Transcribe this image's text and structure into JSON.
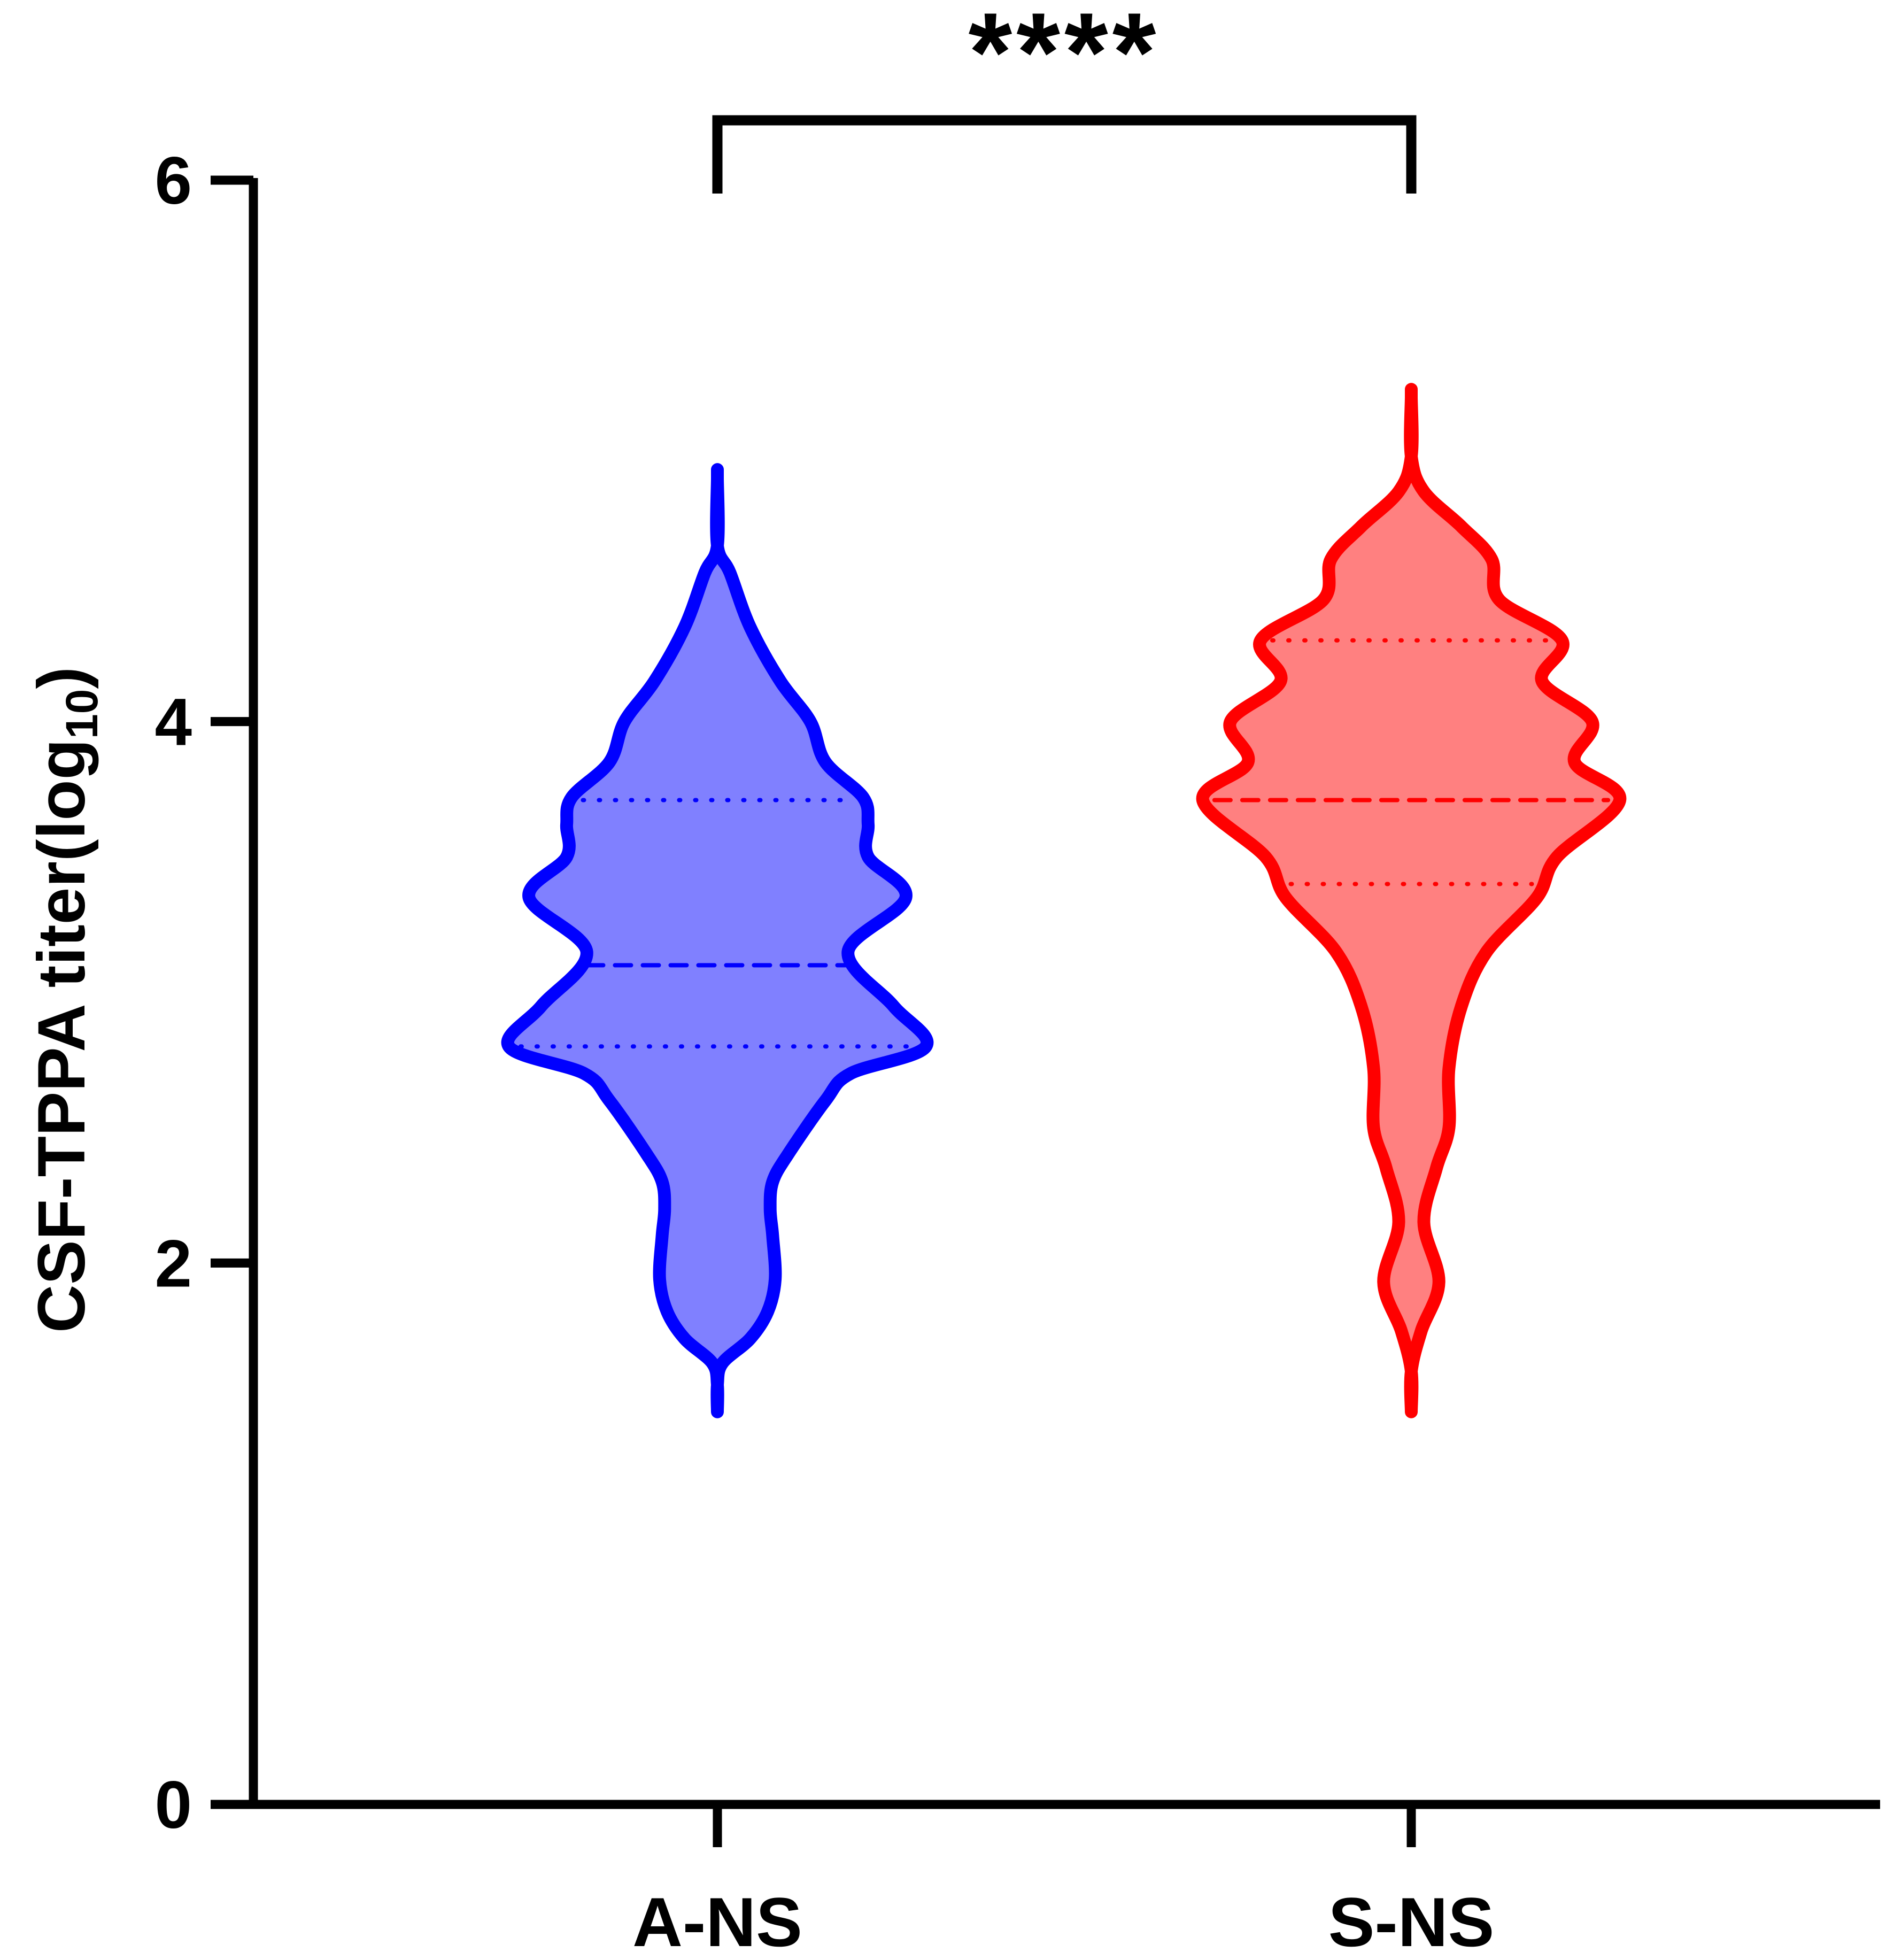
{
  "chart_data": {
    "type": "violin",
    "title": "",
    "xlabel": "",
    "ylabel": "CSF-TPPA titer(log",
    "ylabel_subscript": "10",
    "ylabel_close": ")",
    "ylim": [
      0,
      6
    ],
    "yticks": [
      "0",
      "2",
      "4",
      "6"
    ],
    "categories": [
      "A-NS",
      "S-NS"
    ],
    "grid": false,
    "legend": "none",
    "significance": {
      "label": "****",
      "between": [
        "A-NS",
        "S-NS"
      ]
    },
    "series": [
      {
        "name": "A-NS",
        "color": "#0000ff",
        "fill": "#8080ff",
        "min": 1.45,
        "max": 4.9,
        "q1": 2.8,
        "median": 3.1,
        "q3": 3.71,
        "density": [
          [
            1.45,
            0.0
          ],
          [
            1.55,
            0.0
          ],
          [
            1.63,
            0.02
          ],
          [
            1.72,
            0.13
          ],
          [
            1.82,
            0.2
          ],
          [
            1.94,
            0.23
          ],
          [
            2.1,
            0.22
          ],
          [
            2.2,
            0.21
          ],
          [
            2.3,
            0.22
          ],
          [
            2.4,
            0.28
          ],
          [
            2.6,
            0.43
          ],
          [
            2.7,
            0.53
          ],
          [
            2.8,
            0.83
          ],
          [
            2.95,
            0.7
          ],
          [
            3.15,
            0.52
          ],
          [
            3.35,
            0.75
          ],
          [
            3.5,
            0.6
          ],
          [
            3.62,
            0.6
          ],
          [
            3.72,
            0.58
          ],
          [
            3.85,
            0.43
          ],
          [
            4.0,
            0.37
          ],
          [
            4.15,
            0.25
          ],
          [
            4.35,
            0.13
          ],
          [
            4.55,
            0.05
          ],
          [
            4.65,
            0.0
          ],
          [
            4.9,
            0.0
          ]
        ]
      },
      {
        "name": "S-NS",
        "color": "#ff0000",
        "fill": "#ff8080",
        "min": 1.45,
        "max": 5.2,
        "q1": 3.4,
        "median": 3.71,
        "q3": 4.3,
        "density": [
          [
            1.45,
            0.0
          ],
          [
            1.6,
            0.0
          ],
          [
            1.75,
            0.04
          ],
          [
            1.93,
            0.11
          ],
          [
            2.15,
            0.05
          ],
          [
            2.35,
            0.1
          ],
          [
            2.5,
            0.15
          ],
          [
            2.72,
            0.15
          ],
          [
            2.95,
            0.2
          ],
          [
            3.15,
            0.3
          ],
          [
            3.35,
            0.5
          ],
          [
            3.5,
            0.58
          ],
          [
            3.71,
            0.83
          ],
          [
            3.85,
            0.65
          ],
          [
            4.0,
            0.72
          ],
          [
            4.15,
            0.52
          ],
          [
            4.3,
            0.6
          ],
          [
            4.45,
            0.35
          ],
          [
            4.6,
            0.32
          ],
          [
            4.72,
            0.2
          ],
          [
            4.85,
            0.05
          ],
          [
            4.98,
            0.0
          ],
          [
            5.2,
            0.0
          ]
        ]
      }
    ]
  }
}
